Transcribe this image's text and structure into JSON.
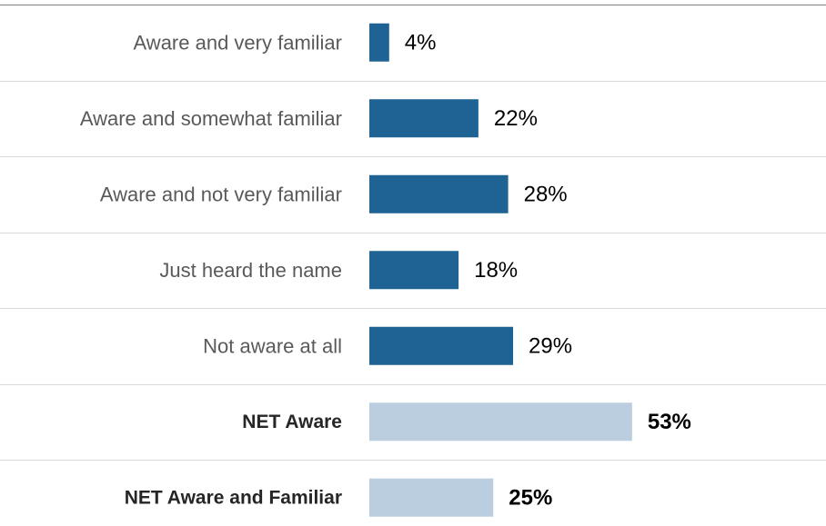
{
  "chart_data": {
    "type": "bar",
    "orientation": "horizontal",
    "categories": [
      "Aware and very familiar",
      "Aware and somewhat familiar",
      "Aware and not very familiar",
      "Just heard the name",
      "Not aware at all",
      "NET Aware",
      "NET Aware and Familiar"
    ],
    "values": [
      4,
      22,
      28,
      18,
      29,
      53,
      25
    ],
    "value_labels": [
      "4%",
      "22%",
      "28%",
      "18%",
      "29%",
      "53%",
      "25%"
    ],
    "emphasis": [
      false,
      false,
      false,
      false,
      false,
      true,
      true
    ],
    "unit": "%",
    "xlim": [
      0,
      100
    ],
    "title": "",
    "xlabel": "",
    "ylabel": "",
    "grid": "horizontal separators",
    "legend": "none",
    "colors": {
      "primary_bar": "#1F6294",
      "net_bar": "#BBCEDF",
      "separator": "#D9D9D9",
      "top_rule": "#7F7F7F",
      "category_text": "#595959",
      "net_text": "#262626",
      "value_text": "#000000"
    }
  }
}
